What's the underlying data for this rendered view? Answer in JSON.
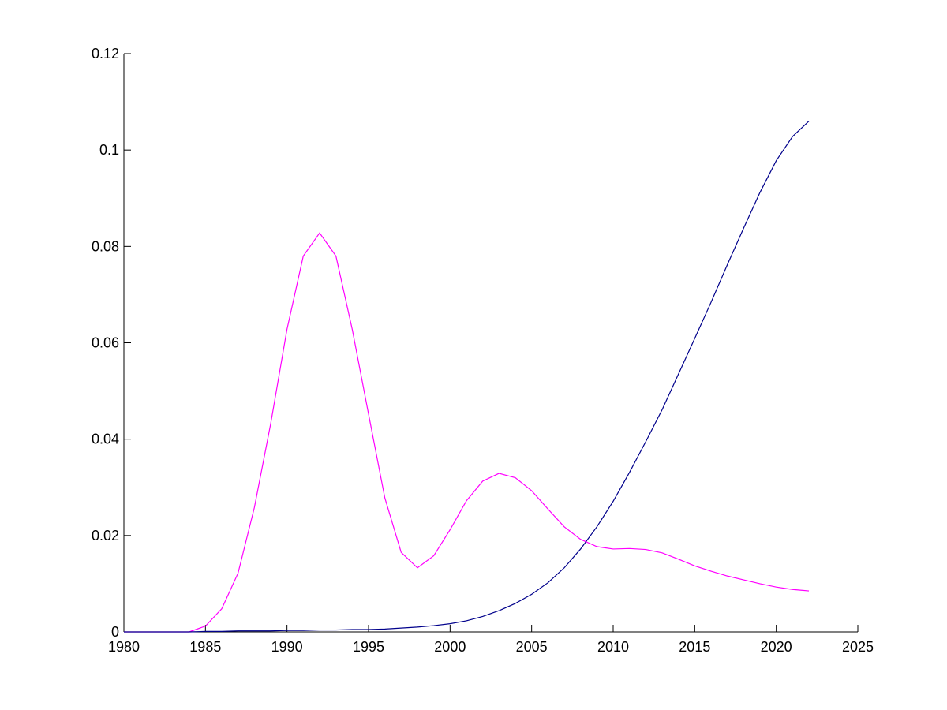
{
  "chart_data": {
    "type": "line",
    "title": "",
    "xlabel": "",
    "ylabel": "",
    "xlim": [
      1980,
      2025
    ],
    "ylim": [
      0,
      0.12
    ],
    "xticks": [
      "1980",
      "1985",
      "1990",
      "1995",
      "2000",
      "2005",
      "2010",
      "2015",
      "2020",
      "2025"
    ],
    "yticks": [
      "0",
      "0.02",
      "0.04",
      "0.06",
      "0.08",
      "0.1",
      "0.12"
    ],
    "grid": false,
    "legend": "none",
    "series": [
      {
        "color": "#ff00ff",
        "x": [
          1980,
          1981,
          1982,
          1983,
          1984,
          1985,
          1986,
          1987,
          1988,
          1989,
          1990,
          1991,
          1992,
          1993,
          1994,
          1995,
          1996,
          1997,
          1998,
          1999,
          2000,
          2001,
          2002,
          2003,
          2004,
          2005,
          2006,
          2007,
          2008,
          2009,
          2010,
          2011,
          2012,
          2013,
          2014,
          2015,
          2016,
          2017,
          2018,
          2019,
          2020,
          2021,
          2022
        ],
        "y": [
          0,
          0,
          0,
          0,
          0,
          0.0012,
          0.0048,
          0.0122,
          0.0258,
          0.0432,
          0.0628,
          0.078,
          0.0828,
          0.078,
          0.0628,
          0.0452,
          0.0278,
          0.0165,
          0.0133,
          0.0158,
          0.0212,
          0.0272,
          0.0313,
          0.0329,
          0.032,
          0.0293,
          0.0255,
          0.0218,
          0.0192,
          0.0177,
          0.0172,
          0.0173,
          0.0171,
          0.0164,
          0.0151,
          0.0137,
          0.0126,
          0.0116,
          0.0108,
          0.01,
          0.0093,
          0.0088,
          0.0085
        ]
      },
      {
        "color": "#00008b",
        "x": [
          1980,
          1981,
          1982,
          1983,
          1984,
          1985,
          1986,
          1987,
          1988,
          1989,
          1990,
          1991,
          1992,
          1993,
          1994,
          1995,
          1996,
          1997,
          1998,
          1999,
          2000,
          2001,
          2002,
          2003,
          2004,
          2005,
          2006,
          2007,
          2008,
          2009,
          2010,
          2011,
          2012,
          2013,
          2014,
          2015,
          2016,
          2017,
          2018,
          2019,
          2020,
          2021,
          2022
        ],
        "y": [
          0,
          0,
          0,
          0,
          0,
          0.0001,
          0.0001,
          0.0002,
          0.0002,
          0.0002,
          0.0003,
          0.0003,
          0.0004,
          0.0004,
          0.0005,
          0.0005,
          0.0006,
          0.0008,
          0.001,
          0.0013,
          0.0017,
          0.0023,
          0.0032,
          0.0044,
          0.0059,
          0.0078,
          0.0102,
          0.0133,
          0.0172,
          0.0218,
          0.0271,
          0.0331,
          0.0395,
          0.0461,
          0.0535,
          0.0609,
          0.0684,
          0.0762,
          0.0838,
          0.0912,
          0.0978,
          0.1028,
          0.106
        ]
      }
    ]
  }
}
